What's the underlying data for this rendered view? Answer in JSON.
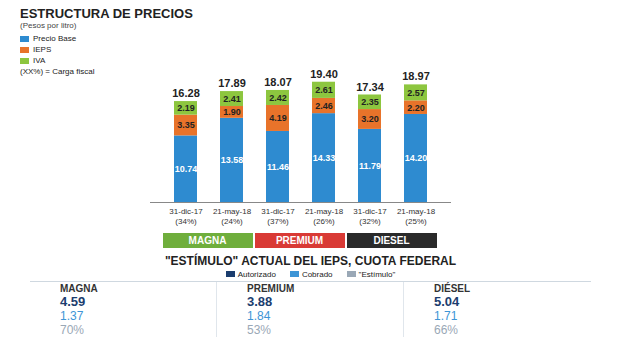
{
  "chart_data": {
    "type": "bar",
    "stacked": true,
    "data_labels": true,
    "tick_labels": "x",
    "title": "ESTRUCTURA DE PRECIOS",
    "subtitle": "(Pesos por litro)",
    "legend_note": "(XX%) = Carga fiscal",
    "categories": [
      "31-dic-17",
      "21-may-18",
      "31-dic-17",
      "21-may-18",
      "31-dic-17",
      "21-may-18"
    ],
    "carga_fiscal": {
      "values": [
        34,
        24,
        37,
        26,
        32,
        25
      ],
      "value_labels": [
        "(34%)",
        "(24%)",
        "(37%)",
        "(26%)",
        "(32%)",
        "(25%)"
      ]
    },
    "group": [
      "MAGNA",
      "MAGNA",
      "PREMIUM",
      "PREMIUM",
      "DIESEL",
      "DIESEL"
    ],
    "group_colors": {
      "MAGNA": "#6fae3c",
      "PREMIUM": "#d93a35",
      "DIESEL": "#2a2a2a"
    },
    "series": [
      {
        "name": "Precio Base",
        "color": "#2e8bd0",
        "values": [
          10.74,
          13.58,
          11.46,
          14.33,
          11.79,
          14.2
        ],
        "value_labels": [
          "10.74",
          "13.58",
          "11.46",
          "14.33",
          "11.79",
          "14.20"
        ]
      },
      {
        "name": "IEPS",
        "color": "#e8732a",
        "values": [
          3.35,
          1.9,
          4.19,
          2.46,
          3.2,
          2.2
        ],
        "value_labels": [
          "3.35",
          "1.90",
          "4.19",
          "2.46",
          "3.20",
          "2.20"
        ]
      },
      {
        "name": "IVA",
        "color": "#8dc63f",
        "values": [
          2.19,
          2.41,
          2.42,
          2.61,
          2.35,
          2.57
        ],
        "value_labels": [
          "2.19",
          "2.41",
          "2.42",
          "2.61",
          "2.35",
          "2.57"
        ]
      }
    ],
    "totals": {
      "values": [
        16.28,
        17.89,
        18.07,
        19.4,
        17.34,
        18.97
      ],
      "value_labels": [
        "16.28",
        "17.89",
        "18.07",
        "19.40",
        "17.34",
        "18.97"
      ]
    },
    "ylim": [
      0,
      20
    ]
  },
  "table": {
    "title": "\"ESTÍMULO\" ACTUAL DEL IEPS, CUOTA FEDERAL",
    "columns": [
      "MAGNA",
      "PREMIUM",
      "DIÉSEL"
    ],
    "rows": [
      {
        "name": "Autorizado",
        "color": "#1b3d6e",
        "values": [
          4.59,
          3.88,
          5.04
        ]
      },
      {
        "name": "Cobrado",
        "color": "#3d95d6",
        "values": [
          1.37,
          1.84,
          1.71
        ]
      },
      {
        "name": "\"Estímulo\"",
        "color": "#9aa8b6",
        "values": [
          70,
          53,
          66
        ],
        "value_labels": [
          "70%",
          "53%",
          "66%"
        ]
      }
    ]
  }
}
